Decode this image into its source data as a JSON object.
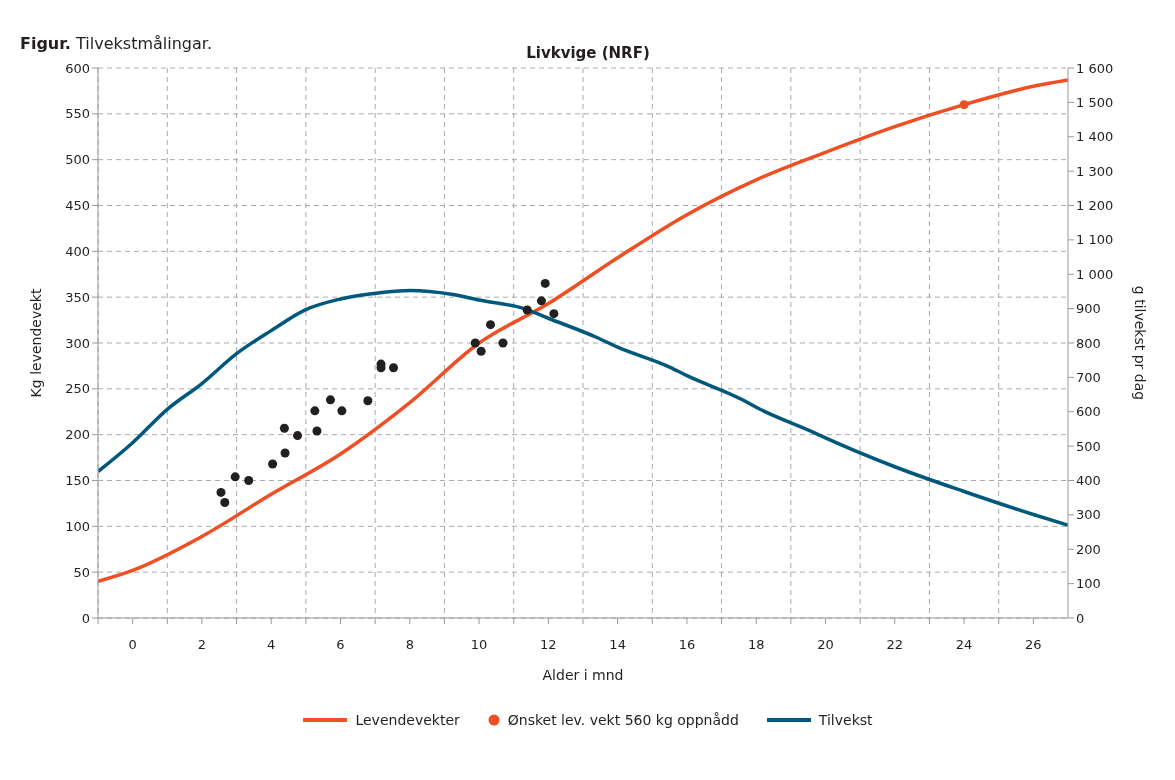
{
  "chart_data": {
    "type": "line",
    "title": "Livkvige (NRF)",
    "annotations": [
      "Figur. Tilvekstmålingar."
    ],
    "xlabel": "Alder i mnd",
    "ylabel": "Kg levendevekt",
    "y2label": "g tilvekst pr dag",
    "xlim": [
      -1,
      27
    ],
    "xticks": [
      {
        "value": -1,
        "label": null
      },
      0,
      {
        "value": 1,
        "label": null
      },
      2,
      {
        "value": 3,
        "label": null
      },
      4,
      {
        "value": 5,
        "label": null
      },
      6,
      {
        "value": 7,
        "label": null
      },
      8,
      {
        "value": 9,
        "label": null
      },
      10,
      {
        "value": 11,
        "label": null
      },
      12,
      {
        "value": 13,
        "label": null
      },
      14,
      {
        "value": 15,
        "label": null
      },
      16,
      {
        "value": 17,
        "label": null
      },
      18,
      {
        "value": 19,
        "label": null
      },
      20,
      {
        "value": 21,
        "label": null
      },
      22,
      {
        "value": 23,
        "label": null
      },
      24,
      {
        "value": 25,
        "label": null
      },
      26
    ],
    "ylim": [
      0,
      600
    ],
    "yticks": [
      0,
      50,
      100,
      150,
      200,
      250,
      300,
      350,
      400,
      450,
      500,
      550,
      600
    ],
    "y2lim": [
      0,
      1600
    ],
    "y2ticks": [
      0,
      100,
      200,
      300,
      400,
      500,
      600,
      700,
      800,
      900,
      {
        "value": 1000,
        "label": "1 000"
      },
      {
        "value": 1100,
        "label": "1 100"
      },
      {
        "value": 1200,
        "label": "1 200"
      },
      {
        "value": 1300,
        "label": "1 300"
      },
      {
        "value": 1400,
        "label": "1 400"
      },
      {
        "value": 1500,
        "label": "1 500"
      },
      {
        "value": 1600,
        "label": "1 600"
      }
    ],
    "grid": true,
    "legend": "bottom",
    "line_style": "solid",
    "series": [
      {
        "name": "Levendevekter",
        "marker": "none",
        "color": "#f04e23",
        "x": [
          -1,
          0,
          2,
          4,
          6,
          8,
          10,
          12,
          14,
          16,
          18,
          20,
          22,
          24,
          26,
          27
        ],
        "values": [
          40,
          52,
          89,
          135,
          179,
          235,
          300,
          343,
          393,
          440,
          478,
          508,
          536,
          560,
          580,
          587
        ]
      },
      {
        "name": "Ønsket lev. vekt 560 kg oppnådd",
        "type": "scatter",
        "marker": "circle",
        "color": "#f04e23",
        "x": [
          24
        ],
        "values": [
          560
        ]
      },
      {
        "name": "Tilvekst",
        "marker": "none",
        "axis": "y2",
        "color": "#00587c",
        "x": [
          -1,
          0,
          1,
          2,
          3,
          4,
          5,
          6,
          7.2,
          8,
          9.2,
          10,
          11.3,
          12,
          13.4,
          14,
          15.5,
          16,
          17.6,
          18,
          19.7,
          20,
          22,
          24,
          26,
          27
        ],
        "values": [
          426,
          510,
          607,
          682,
          769,
          836,
          897,
          928,
          947,
          953,
          942,
          925,
          900,
          872,
          816,
          788,
          730,
          705,
          635,
          613,
          538,
          524,
          440,
          368,
          301,
          270
        ]
      },
      {
        "type": "scatter",
        "marker": "circle",
        "color": "#231f20",
        "x": [
          2.55,
          2.66,
          2.96,
          3.35,
          4.04,
          4.4,
          4.38,
          4.76,
          5.26,
          5.32,
          5.71,
          6.04,
          6.79,
          7.17,
          7.17,
          7.53,
          9.89,
          10.06,
          10.33,
          10.69,
          11.39,
          11.8,
          11.91,
          12.16
        ],
        "values": [
          137,
          126,
          154,
          150,
          168,
          180,
          207,
          199,
          226,
          204,
          238,
          226,
          237,
          277,
          273,
          273,
          300,
          291,
          320,
          300,
          336,
          346,
          365,
          332
        ]
      }
    ]
  }
}
